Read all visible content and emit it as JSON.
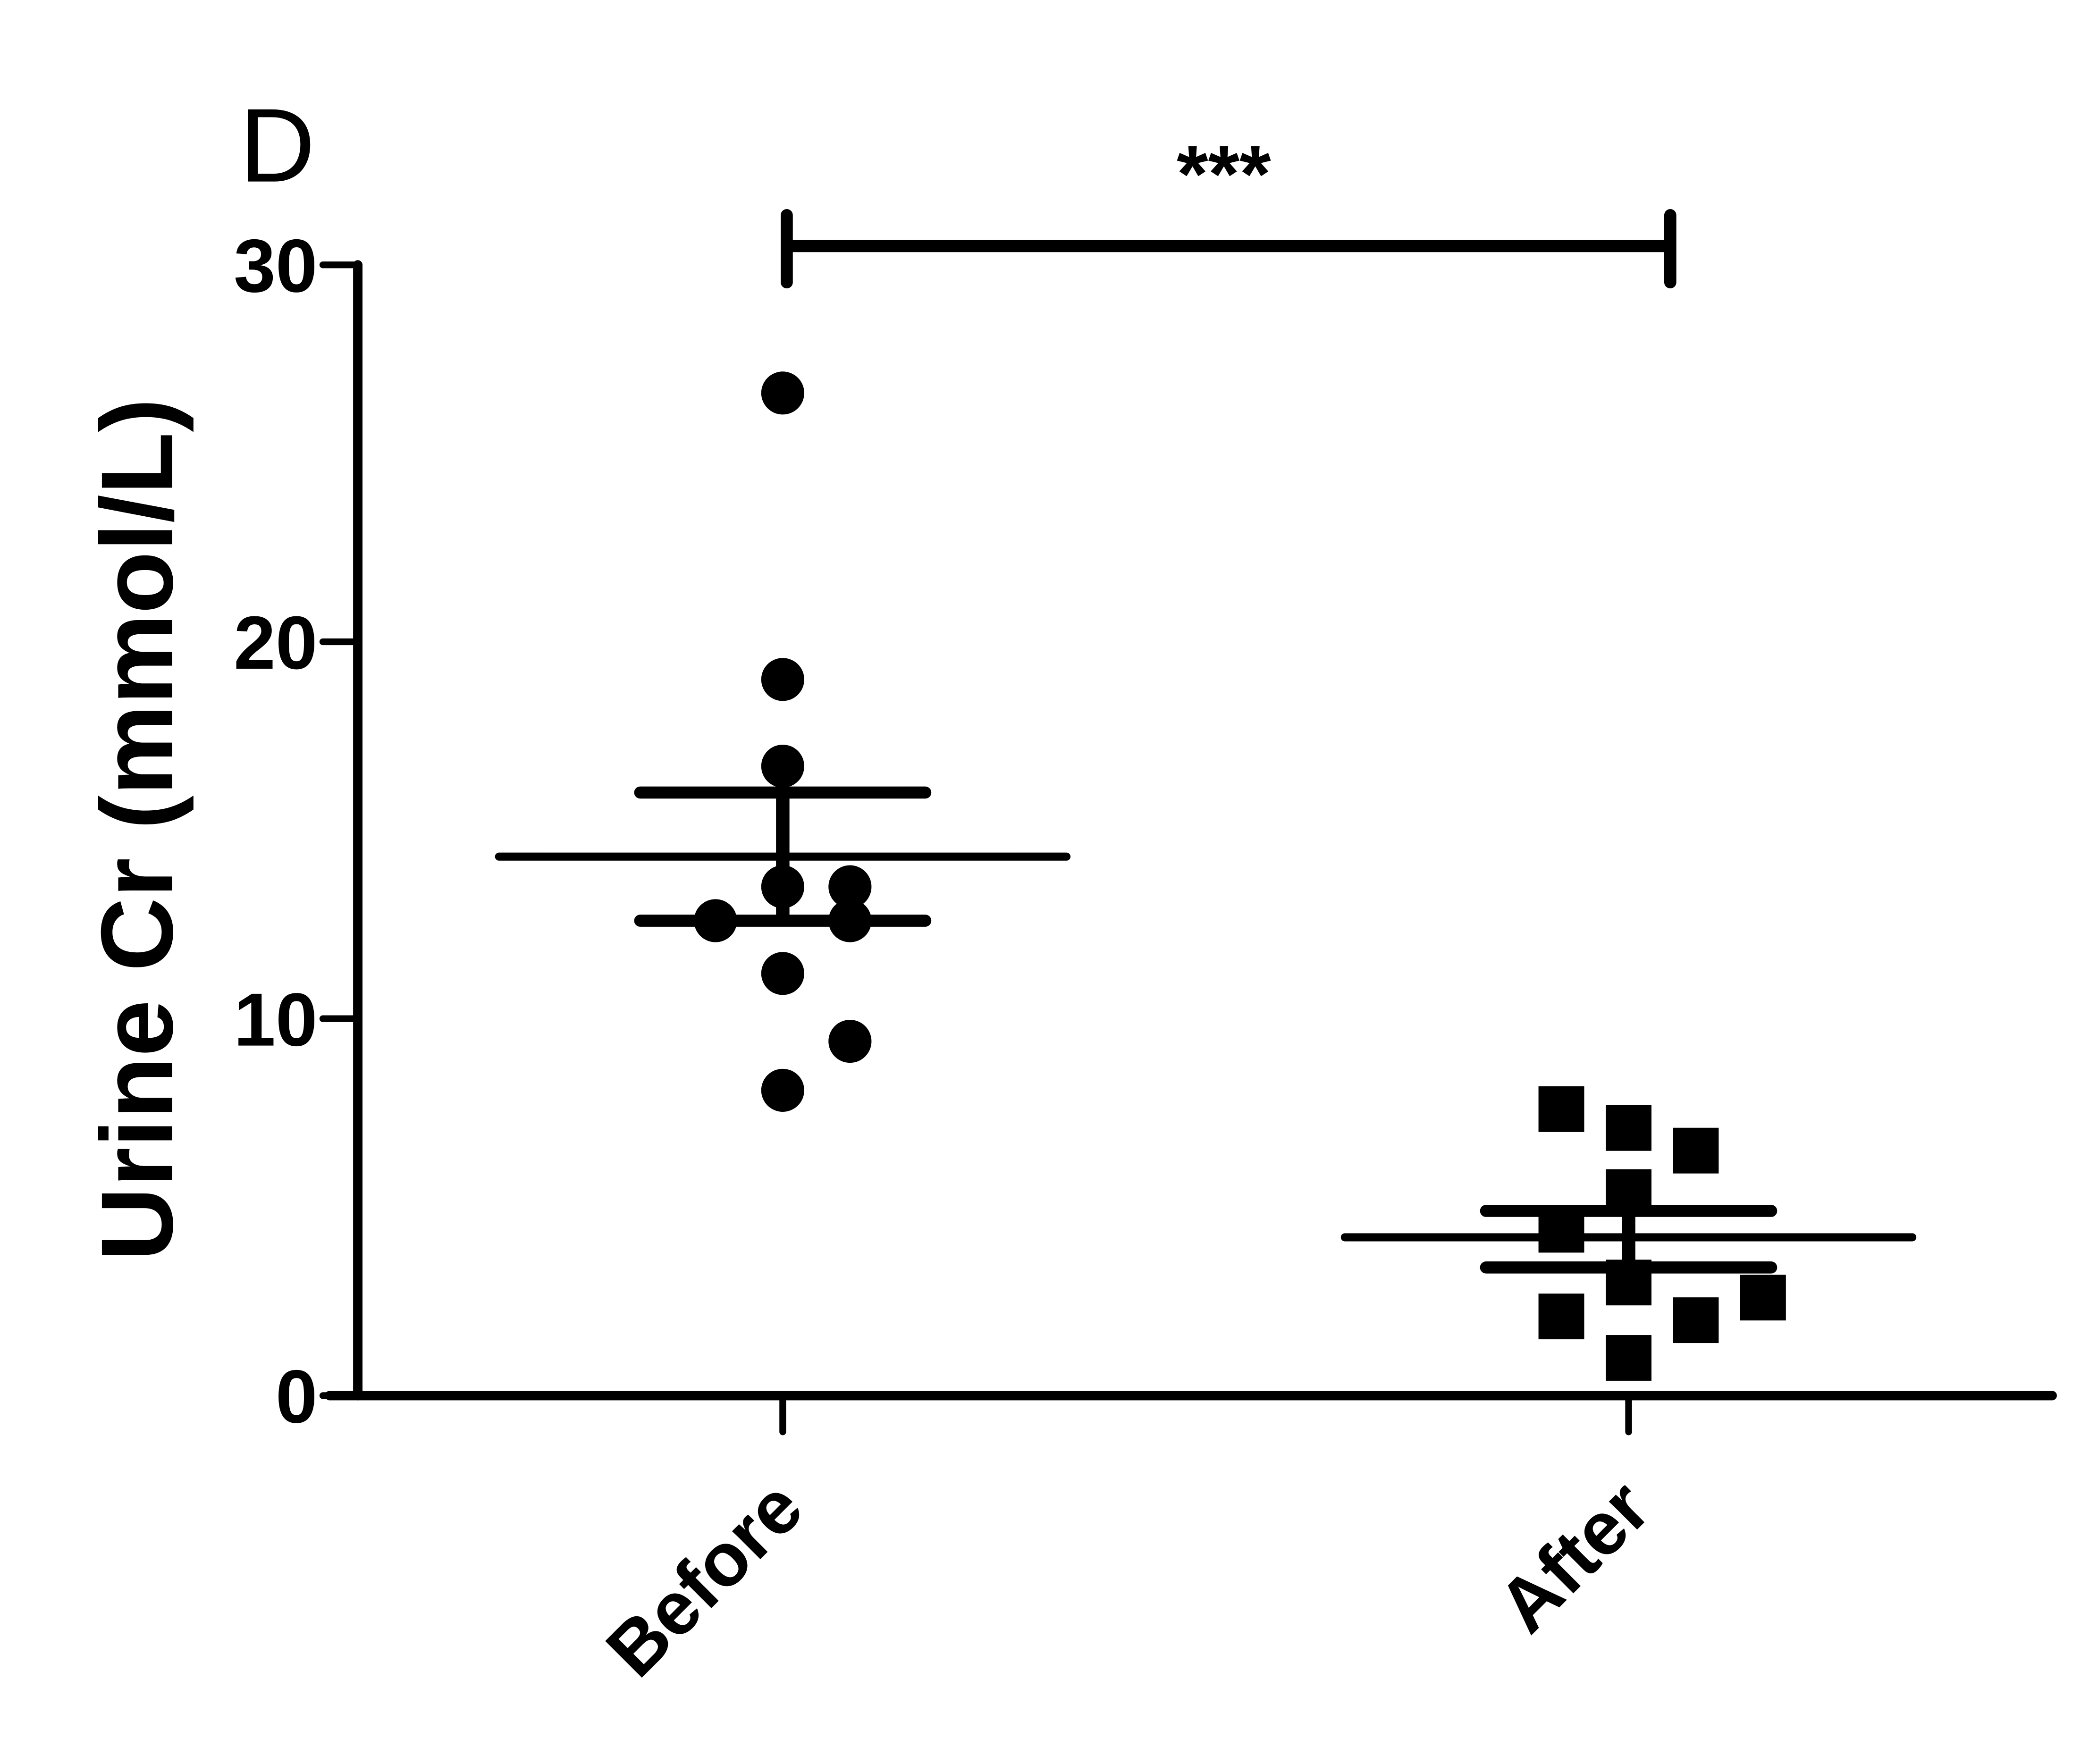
{
  "chart_data": {
    "type": "scatter",
    "panel_label": "D",
    "title": "",
    "xlabel": "",
    "ylabel": "Urine Cr (mmol/L)",
    "ylim": [
      0,
      30
    ],
    "yticks": [
      "0",
      "10",
      "20",
      "30"
    ],
    "categories": [
      "Before",
      "After"
    ],
    "grid": false,
    "series": [
      {
        "name": "Before",
        "marker": "circle",
        "values": [
          26.6,
          19.0,
          16.7,
          13.5,
          13.5,
          12.6,
          12.6,
          11.2,
          9.4,
          8.1
        ],
        "mean": 14.3,
        "sem_upper": 16.0,
        "sem_lower": 12.6
      },
      {
        "name": "After",
        "marker": "square",
        "values": [
          7.6,
          7.1,
          6.5,
          5.4,
          4.4,
          3.0,
          2.1,
          2.0,
          2.6,
          1.0
        ],
        "mean": 4.2,
        "sem_upper": 4.9,
        "sem_lower": 3.4
      }
    ],
    "annotations": [
      {
        "text": "***",
        "between": [
          "Before",
          "After"
        ]
      }
    ],
    "color": "#000000"
  }
}
